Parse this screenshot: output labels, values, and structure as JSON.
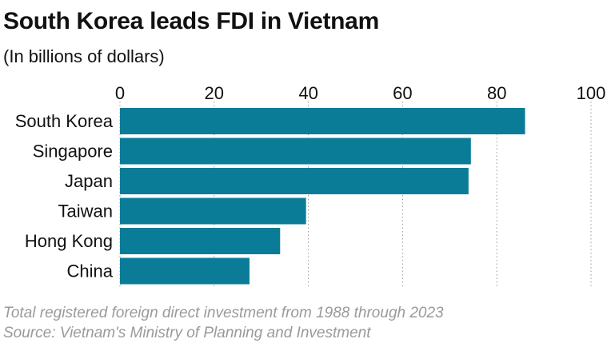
{
  "title": "South Korea leads FDI in Vietnam",
  "subtitle": "(In billions of dollars)",
  "footnote": "Total registered foreign direct investment from 1988 through 2023",
  "source": "Source: Vietnam's Ministry of Planning and Investment",
  "chart_data": {
    "type": "bar",
    "orientation": "horizontal",
    "categories": [
      "South Korea",
      "Singapore",
      "Japan",
      "Taiwan",
      "Hong Kong",
      "China"
    ],
    "values": [
      86,
      74.5,
      74,
      39.5,
      34,
      27.5
    ],
    "xlim": [
      0,
      100
    ],
    "xticks": [
      "0",
      "20",
      "40",
      "60",
      "80",
      "100"
    ],
    "grid": "vertical dotted",
    "bar_color": "#0a7c98"
  }
}
